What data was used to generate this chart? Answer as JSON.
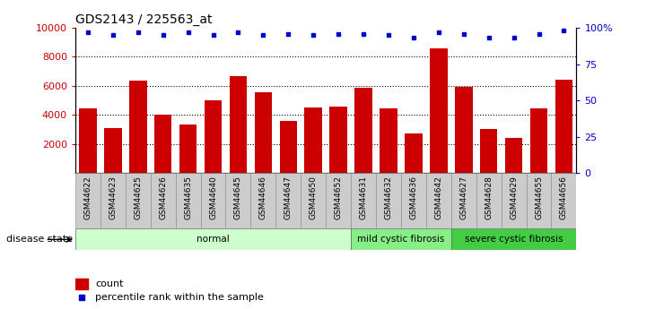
{
  "title": "GDS2143 / 225563_at",
  "samples": [
    "GSM44622",
    "GSM44623",
    "GSM44625",
    "GSM44626",
    "GSM44635",
    "GSM44640",
    "GSM44645",
    "GSM44646",
    "GSM44647",
    "GSM44650",
    "GSM44652",
    "GSM44631",
    "GSM44632",
    "GSM44636",
    "GSM44642",
    "GSM44627",
    "GSM44628",
    "GSM44629",
    "GSM44655",
    "GSM44656"
  ],
  "counts": [
    4450,
    3100,
    6350,
    4050,
    3350,
    5000,
    6650,
    5550,
    3600,
    4500,
    4550,
    5850,
    4450,
    2700,
    8600,
    5950,
    3050,
    2400,
    4450,
    6450
  ],
  "percentiles": [
    97,
    95,
    97,
    95,
    97,
    95,
    97,
    95,
    96,
    95,
    96,
    96,
    95,
    93,
    97,
    96,
    93,
    93,
    96,
    98
  ],
  "group_names": [
    "normal",
    "mild cystic fibrosis",
    "severe cystic fibrosis"
  ],
  "group_sizes": [
    11,
    4,
    5
  ],
  "group_colors": [
    "#ccffcc",
    "#88ee88",
    "#44cc44"
  ],
  "bar_color": "#cc0000",
  "dot_color": "#0000cc",
  "ylim_left": [
    0,
    10000
  ],
  "ylim_right": [
    0,
    100
  ],
  "yticks_left": [
    2000,
    4000,
    6000,
    8000,
    10000
  ],
  "yticks_right": [
    0,
    25,
    50,
    75,
    100
  ],
  "yticklabels_right": [
    "0",
    "25",
    "50",
    "75",
    "100%"
  ],
  "grid_values": [
    2000,
    4000,
    6000,
    8000
  ],
  "legend_count_label": "count",
  "legend_pct_label": "percentile rank within the sample",
  "disease_state_label": "disease state",
  "xtick_bg": "#cccccc",
  "xticklabel_fontsize": 6.5,
  "title_fontsize": 10
}
